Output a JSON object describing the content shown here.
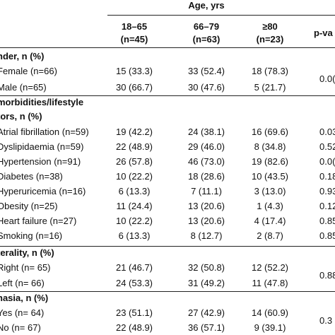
{
  "header": {
    "age_group_title": "Age, yrs",
    "groups": [
      {
        "range": "18–65",
        "n": "(n=45)"
      },
      {
        "range": "66–79",
        "n": "(n=63)"
      },
      {
        "range": "≥80",
        "n": "(n=23)"
      }
    ],
    "p_value_title": "p-va"
  },
  "sections": {
    "gender": {
      "title": "nder, n (%)",
      "rows": [
        {
          "label": "Female (n=66)",
          "c1": "15 (33.3)",
          "c2": "33 (52.4)",
          "c3": "18 (78.3)"
        },
        {
          "label": "Male (n=65)",
          "c1": "30 (66.7)",
          "c2": "30 (47.6)",
          "c3": "5 (21.7)"
        }
      ],
      "p": "0.0("
    },
    "comorbidities": {
      "title_line1": "morbidities/lifestyle",
      "title_line2": "tors, n (%)",
      "rows": [
        {
          "label": "Atrial fibrillation (n=59)",
          "c1": "19 (42.2)",
          "c2": "24 (38.1)",
          "c3": "16 (69.6)",
          "p": "0.03"
        },
        {
          "label": "Dyslipidaemia (n=59)",
          "c1": "22 (48.9)",
          "c2": "29 (46.0)",
          "c3": "8 (34.8)",
          "p": "0.52"
        },
        {
          "label": "Hypertension (n=91)",
          "c1": "26 (57.8)",
          "c2": "46 (73.0)",
          "c3": "19 (82.6)",
          "p": "0.0("
        },
        {
          "label": "Diabetes (n=38)",
          "c1": "10 (22.2)",
          "c2": "18 (28.6)",
          "c3": "10 (43.5)",
          "p": "0.18"
        },
        {
          "label": "Hyperuricemia (n=16)",
          "c1": "6 (13.3)",
          "c2": "7 (11.1)",
          "c3": "3 (13.0)",
          "p": "0.93"
        },
        {
          "label": "Obesity (n=25)",
          "c1": "11 (24.4)",
          "c2": "13 (20.6)",
          "c3": "1 (4.3)",
          "p": "0.12"
        },
        {
          "label": "Heart failure (n=27)",
          "c1": "10 (22.2)",
          "c2": "13 (20.6)",
          "c3": "4 (17.4)",
          "p": "0.85"
        },
        {
          "label": "Smoking (n=16)",
          "c1": "6 (13.3)",
          "c2": "8 (12.7)",
          "c3": "2 (8.7)",
          "p": "0.85"
        }
      ]
    },
    "laterality": {
      "title": "terality, n (%)",
      "rows": [
        {
          "label": "Right (n= 65)",
          "c1": "21 (46.7)",
          "c2": "32 (50.8)",
          "c3": "12 (52.2)"
        },
        {
          "label": "Left (n= 66)",
          "c1": "24 (53.3)",
          "c2": "31 (49.2)",
          "c3": "11 (47.8)"
        }
      ],
      "p": "0.88"
    },
    "aphasia": {
      "title": "hasia, n (%)",
      "rows": [
        {
          "label": "Yes (n= 64)",
          "c1": "23 (51.1)",
          "c2": "27 (42.9)",
          "c3": "14 (60.9)"
        },
        {
          "label": "No (n= 67)",
          "c1": "22 (48.9)",
          "c2": "36 (57.1)",
          "c3": "9 (39.1)"
        }
      ],
      "p": "0.3"
    }
  }
}
